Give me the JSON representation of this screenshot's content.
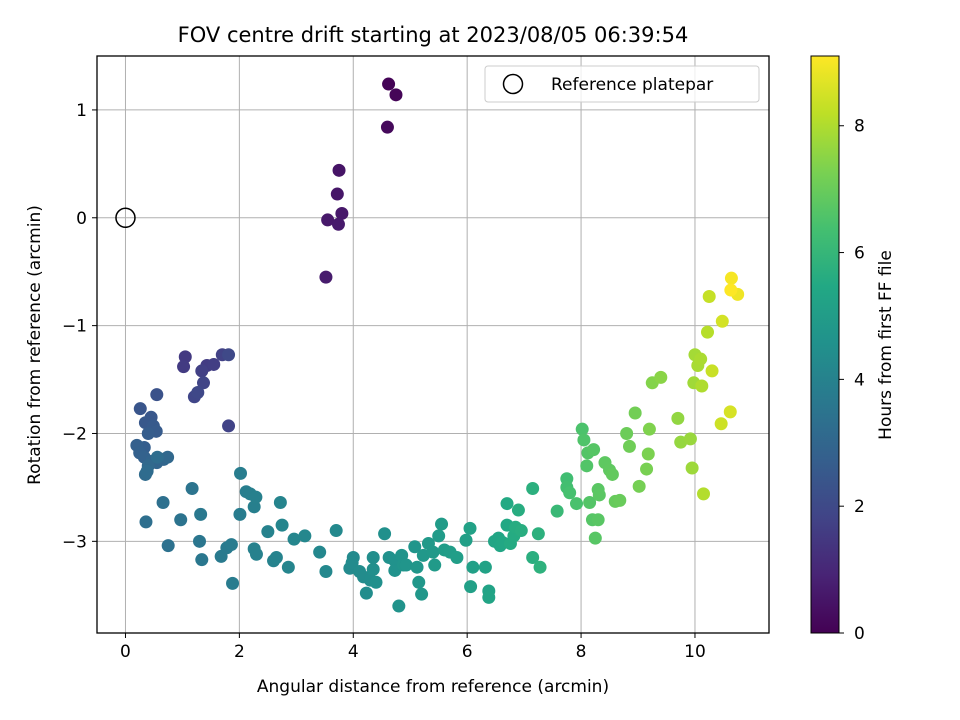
{
  "chart_data": {
    "type": "scatter",
    "title": "FOV centre drift starting at 2023/08/05 06:39:54",
    "xlabel": "Angular distance from reference (arcmin)",
    "ylabel": "Rotation from reference (arcmin)",
    "xlim": [
      -0.5,
      11.3
    ],
    "ylim": [
      -3.85,
      1.5
    ],
    "xticks": [
      0,
      2,
      4,
      6,
      8,
      10
    ],
    "yticks": [
      -3,
      -2,
      -1,
      0,
      1
    ],
    "grid": true,
    "legend": {
      "position": "top-right",
      "entries": [
        "Reference platepar"
      ]
    },
    "reference_point": {
      "x": 0,
      "y": 0
    },
    "colorbar": {
      "label": "Hours from first FF file",
      "range": [
        0,
        9.1
      ],
      "ticks": [
        0,
        2,
        4,
        6,
        8
      ],
      "colormap": "viridis"
    },
    "series": [
      {
        "x": [
          4.62,
          4.75,
          4.6,
          3.75,
          3.72,
          3.8,
          3.55,
          3.74,
          3.52,
          1.05,
          1.02,
          1.43,
          1.55,
          1.34,
          1.7,
          1.81,
          1.37,
          1.21,
          1.27,
          1.81,
          0.55,
          0.26,
          0.45,
          0.35,
          0.49,
          0.54,
          0.4,
          0.33,
          0.2,
          0.25,
          0.33,
          0.45,
          0.55,
          0.67,
          0.74,
          0.4,
          0.35,
          0.38,
          0.56
        ],
        "y": [
          1.24,
          1.14,
          0.84,
          0.44,
          0.22,
          0.04,
          -0.02,
          -0.06,
          -0.55,
          -1.29,
          -1.38,
          -1.37,
          -1.36,
          -1.42,
          -1.27,
          -1.93,
          -1.53,
          -1.66,
          -1.62,
          -1.27,
          -1.64,
          -1.77,
          -1.85,
          -1.9,
          -1.93,
          -1.98,
          -2.0,
          -2.13,
          -2.11,
          -2.18,
          -2.22,
          -2.26,
          -2.27,
          -2.24,
          -2.22,
          -2.3,
          -2.38,
          -2.35,
          -2.22
        ],
        "hours": [
          0.05,
          0.12,
          0.2,
          0.5,
          0.55,
          0.6,
          0.62,
          0.65,
          0.7,
          1.5,
          1.55,
          1.6,
          1.65,
          1.7,
          1.75,
          1.8,
          1.85,
          1.9,
          1.95,
          2.0,
          2.3,
          2.4,
          2.45,
          2.5,
          2.55,
          2.6,
          2.65,
          2.7,
          2.75,
          2.8,
          2.85,
          2.9,
          2.95,
          3.0,
          3.05,
          3.1,
          3.15,
          3.2,
          3.25
        ]
      },
      {
        "x": [
          0.36,
          0.66,
          0.75,
          0.97,
          1.17,
          1.3,
          1.34,
          1.32,
          1.68,
          1.78,
          1.86,
          1.88,
          2.01,
          2.02,
          2.12,
          2.19,
          2.26,
          2.29,
          2.26,
          2.3,
          2.5,
          2.6,
          2.65,
          2.72,
          2.75,
          2.86,
          2.96,
          3.15,
          3.41,
          3.52,
          3.7,
          3.94,
          4.0,
          3.98,
          4.11,
          4.18,
          4.23,
          4.3,
          4.35,
          4.35,
          4.4,
          4.55,
          4.63,
          4.73,
          4.73,
          4.8,
          4.85,
          4.88,
          4.93,
          5.08,
          5.12,
          5.15,
          5.2,
          5.23,
          5.32,
          5.4
        ],
        "y": [
          -2.82,
          -2.64,
          -3.04,
          -2.8,
          -2.51,
          -3.0,
          -3.17,
          -2.75,
          -3.14,
          -3.06,
          -3.03,
          -3.39,
          -2.75,
          -2.37,
          -2.54,
          -2.56,
          -2.68,
          -2.59,
          -3.07,
          -3.12,
          -2.91,
          -3.18,
          -3.15,
          -2.64,
          -2.85,
          -3.24,
          -2.98,
          -2.95,
          -3.1,
          -3.28,
          -2.9,
          -3.25,
          -3.15,
          -3.2,
          -3.28,
          -3.33,
          -3.48,
          -3.36,
          -3.15,
          -3.26,
          -3.38,
          -2.93,
          -3.15,
          -3.18,
          -3.27,
          -3.6,
          -3.13,
          -3.22,
          -3.22,
          -3.05,
          -3.24,
          -3.38,
          -3.49,
          -3.13,
          -3.02,
          -3.1
        ],
        "hours": [
          3.3,
          3.35,
          3.4,
          3.45,
          3.5,
          3.55,
          3.6,
          3.65,
          3.7,
          3.72,
          3.75,
          3.78,
          3.8,
          3.82,
          3.85,
          3.88,
          3.9,
          3.92,
          3.95,
          3.98,
          4.0,
          4.02,
          4.05,
          4.08,
          4.1,
          4.12,
          4.15,
          4.18,
          4.2,
          4.22,
          4.25,
          4.28,
          4.3,
          4.32,
          4.35,
          4.38,
          4.4,
          4.42,
          4.45,
          4.48,
          4.5,
          4.52,
          4.55,
          4.58,
          4.6,
          4.62,
          4.65,
          4.68,
          4.7,
          4.72,
          4.75,
          4.78,
          4.8,
          4.82,
          4.85,
          4.88
        ]
      },
      {
        "x": [
          5.43,
          5.5,
          5.55,
          5.6,
          5.7,
          5.82,
          5.98,
          6.06,
          6.1,
          6.05,
          6.32,
          6.38,
          6.38,
          6.48,
          6.55,
          6.58,
          6.62,
          6.7,
          6.7,
          6.76,
          6.82,
          6.85,
          6.9,
          6.95,
          7.15,
          7.15,
          7.25,
          7.28,
          7.58,
          7.75,
          7.75,
          7.8,
          7.92,
          8.02,
          8.05,
          8.1,
          8.12,
          8.15,
          8.2,
          8.22,
          8.25,
          8.3,
          8.3,
          8.32,
          8.42,
          8.5,
          8.55,
          8.6,
          8.68,
          8.8,
          8.85,
          8.95,
          9.02,
          9.15,
          9.18,
          9.2,
          9.25,
          9.4
        ],
        "y": [
          -3.22,
          -2.95,
          -2.84,
          -3.08,
          -3.1,
          -3.15,
          -2.99,
          -3.42,
          -3.24,
          -2.88,
          -3.24,
          -3.46,
          -3.52,
          -3.0,
          -2.97,
          -3.04,
          -3.01,
          -2.85,
          -2.65,
          -3.02,
          -2.95,
          -2.87,
          -2.71,
          -2.9,
          -3.15,
          -2.51,
          -2.93,
          -3.24,
          -2.72,
          -2.42,
          -2.5,
          -2.55,
          -2.65,
          -1.96,
          -2.06,
          -2.3,
          -2.18,
          -2.64,
          -2.8,
          -2.15,
          -2.97,
          -2.8,
          -2.52,
          -2.57,
          -2.27,
          -2.34,
          -2.38,
          -2.63,
          -2.62,
          -2.0,
          -2.12,
          -1.81,
          -2.49,
          -2.33,
          -2.19,
          -1.96,
          -1.53,
          -1.48
        ],
        "hours": [
          4.9,
          4.93,
          4.96,
          5.0,
          5.03,
          5.06,
          5.1,
          5.13,
          5.16,
          5.2,
          5.23,
          5.26,
          5.3,
          5.33,
          5.36,
          5.4,
          5.43,
          5.46,
          5.5,
          5.53,
          5.56,
          5.6,
          5.63,
          5.66,
          5.7,
          5.73,
          5.76,
          5.8,
          6.1,
          6.3,
          6.35,
          6.4,
          6.45,
          6.5,
          6.55,
          6.6,
          6.62,
          6.64,
          6.66,
          6.68,
          6.7,
          6.72,
          6.74,
          6.76,
          6.8,
          6.85,
          6.9,
          6.95,
          7.0,
          7.05,
          7.1,
          7.15,
          7.2,
          7.25,
          7.3,
          7.35,
          7.4,
          7.5
        ]
      },
      {
        "x": [
          9.7,
          9.75,
          9.92,
          9.95,
          9.98,
          10.0,
          10.05,
          10.1,
          10.12,
          10.15,
          10.22,
          10.25,
          10.3,
          10.46,
          10.48,
          10.62,
          10.64,
          10.75
        ],
        "y": [
          -1.86,
          -2.08,
          -2.05,
          -2.32,
          -1.53,
          -1.27,
          -1.37,
          -1.31,
          -1.56,
          -2.56,
          -1.06,
          -0.73,
          -1.42,
          -1.91,
          -0.96,
          -1.8,
          -0.56,
          -0.71
        ],
        "hours": [
          7.6,
          7.65,
          7.7,
          7.75,
          7.8,
          7.85,
          7.9,
          7.95,
          8.0,
          8.05,
          8.1,
          8.3,
          8.35,
          8.4,
          8.5,
          8.55,
          9.0,
          8.9
        ]
      },
      {
        "x": [
          10.63
        ],
        "y": [
          -0.67
        ],
        "hours": [
          9.1
        ]
      }
    ]
  }
}
